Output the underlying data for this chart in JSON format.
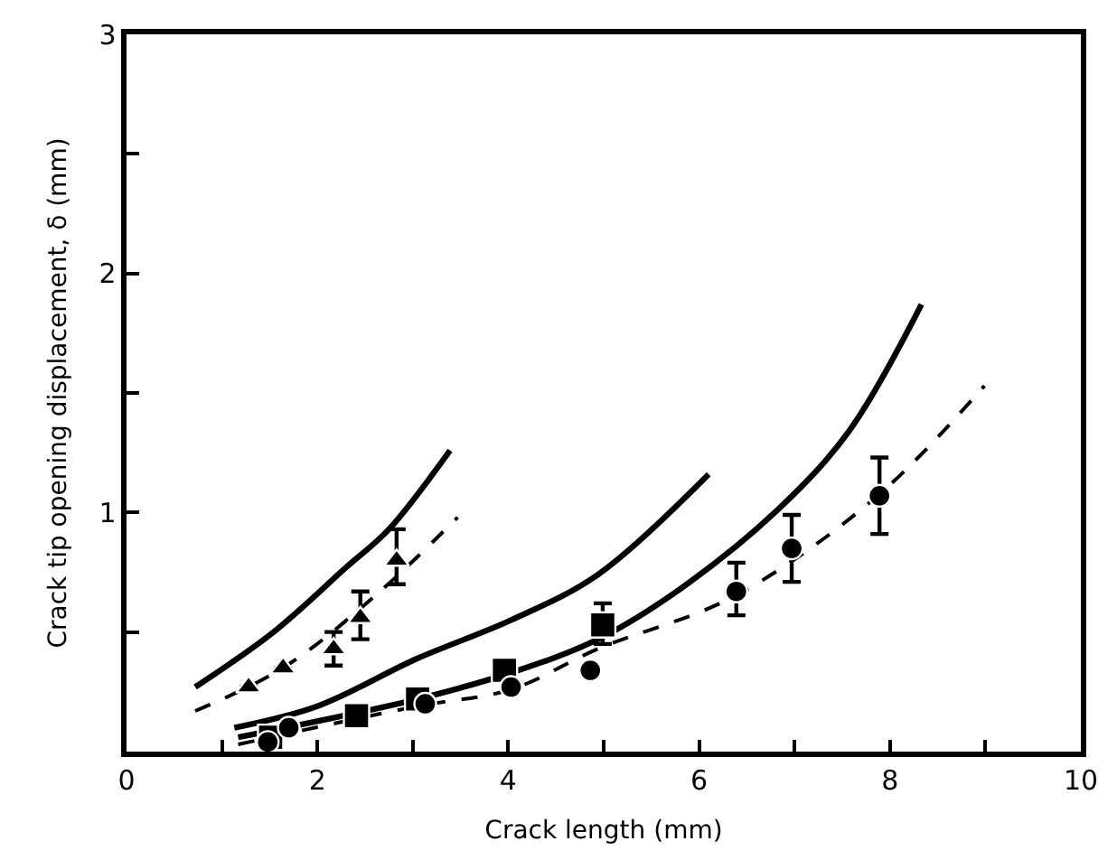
{
  "chart_data": {
    "type": "scatter",
    "xlabel": "Crack length (mm)",
    "ylabel": "Crack tip opening displacement, δ (mm)",
    "xlim": [
      0,
      10
    ],
    "ylim": [
      0,
      3
    ],
    "xticks": [
      0,
      {
        "value": 1,
        "label": null
      },
      2,
      {
        "value": 3,
        "label": null
      },
      4,
      {
        "value": 5,
        "label": null
      },
      6,
      {
        "value": 7,
        "label": null
      },
      8,
      {
        "value": 9,
        "label": null
      },
      10
    ],
    "yticks": [
      {
        "value": 0.5,
        "label": null
      },
      1,
      {
        "value": 1.5,
        "label": null
      },
      2,
      {
        "value": 2.5,
        "label": null
      },
      3
    ],
    "series": [
      {
        "type": "line",
        "marker": "none",
        "line_style": "solid",
        "color": "#000000",
        "x": [
          0.72,
          1.54,
          2.3,
          2.75,
          3.39
        ],
        "values": [
          0.27,
          0.5,
          0.77,
          0.93,
          1.26
        ]
      },
      {
        "type": "line",
        "marker": "none",
        "line_style": "dashed",
        "color": "#000000",
        "x": [
          0.72,
          1.64,
          2.6,
          3.47
        ],
        "values": [
          0.17,
          0.35,
          0.65,
          0.98
        ]
      },
      {
        "type": "line",
        "marker": "none",
        "line_style": "solid",
        "color": "#000000",
        "x": [
          1.13,
          2.0,
          3.05,
          4.03,
          4.94,
          6.1
        ],
        "values": [
          0.1,
          0.19,
          0.39,
          0.55,
          0.74,
          1.16
        ]
      },
      {
        "type": "line",
        "marker": "none",
        "line_style": "solid",
        "color": "#000000",
        "x": [
          1.17,
          3.05,
          4.03,
          4.94,
          5.8,
          6.82,
          7.57,
          8.33
        ],
        "values": [
          0.06,
          0.22,
          0.33,
          0.47,
          0.68,
          1.01,
          1.34,
          1.87
        ]
      },
      {
        "type": "line",
        "marker": "none",
        "line_style": "dashed",
        "color": "#000000",
        "x": [
          1.17,
          3.05,
          4.03,
          4.94,
          6.37,
          7.87,
          8.99
        ],
        "values": [
          0.03,
          0.19,
          0.26,
          0.43,
          0.65,
          1.07,
          1.53
        ]
      },
      {
        "marker": "triangle",
        "color": "#000000",
        "x": [
          1.28,
          1.64,
          2.17,
          2.45,
          2.83
        ],
        "values": [
          0.27,
          0.35,
          0.43,
          0.56,
          0.8
        ],
        "errors": [
          null,
          null,
          [
            0.36,
            0.5
          ],
          [
            0.47,
            0.67
          ],
          [
            0.7,
            0.93
          ]
        ]
      },
      {
        "marker": "square",
        "color": "#000000",
        "x": [
          1.51,
          2.41,
          3.05,
          3.96,
          4.99
        ],
        "values": [
          0.06,
          0.15,
          0.22,
          0.34,
          0.53
        ],
        "errors": [
          null,
          null,
          null,
          null,
          [
            0.45,
            0.62
          ]
        ]
      },
      {
        "marker": "circle",
        "color": "#000000",
        "x": [
          1.48,
          1.7,
          3.13,
          4.03,
          4.86,
          6.39,
          6.97,
          7.89
        ],
        "values": [
          0.04,
          0.1,
          0.2,
          0.27,
          0.34,
          0.67,
          0.85,
          1.07
        ],
        "errors": [
          null,
          null,
          null,
          null,
          null,
          [
            0.57,
            0.79
          ],
          [
            0.71,
            0.99
          ],
          [
            0.91,
            1.23
          ]
        ]
      }
    ]
  }
}
